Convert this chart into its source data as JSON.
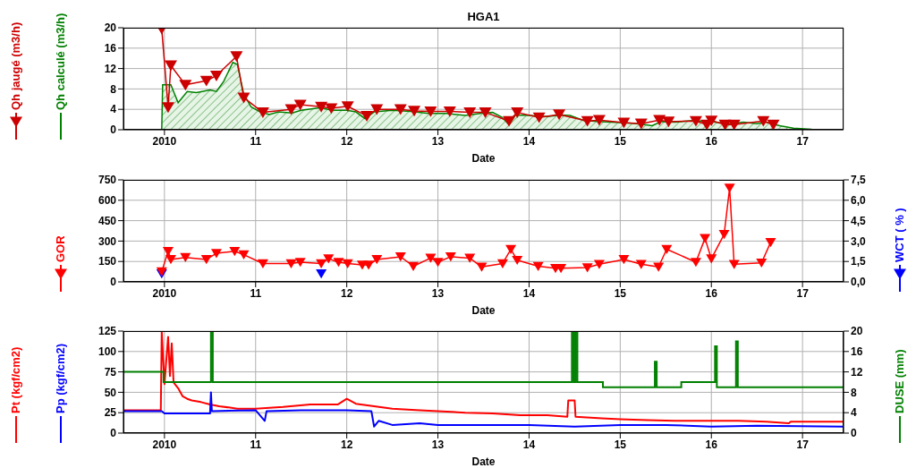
{
  "chart_data": [
    {
      "type": "line",
      "title": "HGA1",
      "xlabel": "Date",
      "xlim": [
        2009.55,
        2017.45
      ],
      "xticks": [
        {
          "value": 2010,
          "label": "2010"
        },
        {
          "value": 2011,
          "label": "11"
        },
        {
          "value": 2012,
          "label": "12"
        },
        {
          "value": 2013,
          "label": "13"
        },
        {
          "value": 2014,
          "label": "14"
        },
        {
          "value": 2015,
          "label": "15"
        },
        {
          "value": 2016,
          "label": "16"
        },
        {
          "value": 2017,
          "label": "17"
        }
      ],
      "ylim": [
        0,
        20
      ],
      "yticks": [
        0,
        4,
        8,
        12,
        16,
        20
      ],
      "grid": true,
      "legend": "left",
      "series": [
        {
          "name": "Qh jaugé (m3/h)",
          "type": "line",
          "marker": "triangle",
          "color": "#cc0000",
          "x": [
            2009.97,
            2010.04,
            2010.07,
            2010.23,
            2010.46,
            2010.57,
            2010.79,
            2010.87,
            2011.08,
            2011.39,
            2011.49,
            2011.72,
            2011.83,
            2012.01,
            2012.22,
            2012.33,
            2012.59,
            2012.74,
            2012.92,
            2013.13,
            2013.35,
            2013.52,
            2013.78,
            2013.87,
            2014.11,
            2014.33,
            2014.64,
            2014.77,
            2015.04,
            2015.23,
            2015.43,
            2015.53,
            2015.83,
            2015.95,
            2016.0,
            2016.15,
            2016.25,
            2016.57,
            2016.68
          ],
          "values": [
            19.8,
            4.4,
            12.6,
            8.8,
            9.6,
            10.6,
            14.4,
            6.3,
            3.4,
            4.0,
            4.9,
            4.5,
            4.2,
            4.6,
            2.7,
            4.0,
            4.0,
            3.7,
            3.6,
            3.6,
            3.4,
            3.4,
            1.7,
            3.4,
            2.4,
            3.0,
            1.7,
            1.9,
            1.4,
            1.2,
            1.9,
            1.6,
            1.7,
            1.0,
            1.8,
            1.0,
            1.0,
            1.7,
            1.0
          ]
        },
        {
          "name": "Qh calculé (m3/h)",
          "type": "area",
          "color": "#008000",
          "x": [
            2009.97,
            2009.98,
            2010.04,
            2010.07,
            2010.15,
            2010.25,
            2010.35,
            2010.5,
            2010.57,
            2010.65,
            2010.75,
            2010.8,
            2010.87,
            2010.95,
            2011.05,
            2011.15,
            2011.25,
            2011.4,
            2011.5,
            2011.7,
            2011.85,
            2012.0,
            2012.1,
            2012.2,
            2012.3,
            2012.5,
            2012.7,
            2012.9,
            2013.1,
            2013.3,
            2013.5,
            2013.6,
            2013.7,
            2013.78,
            2013.85,
            2014.0,
            2014.2,
            2014.35,
            2014.45,
            2014.6,
            2014.8,
            2015.0,
            2015.2,
            2015.35,
            2015.45,
            2015.6,
            2015.8,
            2016.0,
            2016.2,
            2016.35,
            2016.5,
            2016.6,
            2016.75,
            2016.9,
            2017.1
          ],
          "values": [
            0,
            8.8,
            8.8,
            8.8,
            5.3,
            7.5,
            7.3,
            7.8,
            7.5,
            9.5,
            13.2,
            12.8,
            7,
            4.5,
            3.5,
            3,
            3.5,
            3.3,
            3.8,
            4.3,
            3.8,
            3.8,
            3.5,
            2.2,
            3.5,
            3.8,
            3.6,
            3.2,
            3.2,
            2.8,
            3.3,
            3.4,
            2.5,
            1.0,
            2.9,
            2.8,
            2.6,
            2.9,
            2.8,
            1.8,
            1.6,
            1.4,
            1.2,
            0.8,
            1.6,
            1.5,
            1.8,
            1.6,
            1.2,
            1.5,
            1.2,
            1.5,
            0.8,
            0.3,
            0.1
          ]
        }
      ]
    },
    {
      "type": "line",
      "xlabel": "Date",
      "xlim": [
        2009.55,
        2017.45
      ],
      "xticks": [
        {
          "value": 2010,
          "label": "2010"
        },
        {
          "value": 2011,
          "label": "11"
        },
        {
          "value": 2012,
          "label": "12"
        },
        {
          "value": 2013,
          "label": "13"
        },
        {
          "value": 2014,
          "label": "14"
        },
        {
          "value": 2015,
          "label": "15"
        },
        {
          "value": 2016,
          "label": "16"
        },
        {
          "value": 2017,
          "label": "17"
        }
      ],
      "ylim": [
        0,
        750
      ],
      "yticks": [
        0,
        150,
        300,
        450,
        600,
        750
      ],
      "y2lim": [
        0,
        7.5
      ],
      "y2ticks": [
        {
          "value": 0,
          "label": "0,0"
        },
        {
          "value": 1.5,
          "label": "1,5"
        },
        {
          "value": 3,
          "label": "3,0"
        },
        {
          "value": 4.5,
          "label": "4,5"
        },
        {
          "value": 6,
          "label": "6,0"
        },
        {
          "value": 7.5,
          "label": "7,5"
        }
      ],
      "grid": true,
      "legend": "left",
      "series": [
        {
          "name": "GOR",
          "type": "line",
          "marker": "triangle",
          "color": "#ff0000",
          "x": [
            2009.97,
            2010.04,
            2010.07,
            2010.23,
            2010.46,
            2010.57,
            2010.77,
            2010.87,
            2011.08,
            2011.39,
            2011.49,
            2011.72,
            2011.8,
            2011.91,
            2012.01,
            2012.17,
            2012.24,
            2012.33,
            2012.59,
            2012.73,
            2012.92,
            2013.0,
            2013.14,
            2013.35,
            2013.48,
            2013.71,
            2013.8,
            2013.87,
            2014.1,
            2014.29,
            2014.35,
            2014.64,
            2014.77,
            2015.04,
            2015.23,
            2015.42,
            2015.51,
            2015.83,
            2015.93,
            2016.0,
            2016.14,
            2016.2,
            2016.25,
            2016.55,
            2016.65
          ],
          "values": [
            75,
            225,
            165,
            180,
            165,
            210,
            225,
            200,
            135,
            135,
            145,
            135,
            170,
            145,
            135,
            125,
            125,
            165,
            185,
            115,
            175,
            145,
            185,
            175,
            110,
            135,
            240,
            160,
            115,
            100,
            100,
            105,
            130,
            165,
            130,
            110,
            240,
            145,
            320,
            170,
            350,
            690,
            130,
            140,
            290
          ]
        },
        {
          "name": "WCT ( % )",
          "type": "scatter",
          "marker": "triangle",
          "axis": "y2",
          "color": "#0000ff",
          "x": [
            2009.97,
            2011.72
          ],
          "values": [
            0.6,
            0.6
          ]
        }
      ]
    },
    {
      "type": "line",
      "xlabel": "Date",
      "xlim": [
        2009.55,
        2017.45
      ],
      "xticks": [
        {
          "value": 2010,
          "label": "2010"
        },
        {
          "value": 2011,
          "label": "11"
        },
        {
          "value": 2012,
          "label": "12"
        },
        {
          "value": 2013,
          "label": "13"
        },
        {
          "value": 2014,
          "label": "14"
        },
        {
          "value": 2015,
          "label": "15"
        },
        {
          "value": 2016,
          "label": "16"
        },
        {
          "value": 2017,
          "label": "17"
        }
      ],
      "ylim": [
        0,
        125
      ],
      "yticks": [
        0,
        25,
        50,
        75,
        100,
        125
      ],
      "y2lim": [
        0,
        20
      ],
      "y2ticks": [
        0,
        4,
        8,
        12,
        16,
        20
      ],
      "grid": true,
      "legend": "left",
      "series": [
        {
          "name": "Pt (kgf/cm2)",
          "type": "line",
          "color": "#ff0000",
          "x": [
            2009.55,
            2009.96,
            2009.97,
            2010.0,
            2010.04,
            2010.06,
            2010.08,
            2010.1,
            2010.15,
            2010.2,
            2010.25,
            2010.3,
            2010.4,
            2010.5,
            2010.6,
            2010.8,
            2011.0,
            2011.3,
            2011.6,
            2011.9,
            2012.0,
            2012.1,
            2012.3,
            2012.5,
            2012.8,
            2013.0,
            2013.3,
            2013.6,
            2013.9,
            2014.2,
            2014.42,
            2014.43,
            2014.5,
            2014.51,
            2014.8,
            2015.0,
            2015.3,
            2015.6,
            2016.0,
            2016.3,
            2016.6,
            2016.85,
            2016.87,
            2017.45
          ],
          "values": [
            28,
            28,
            125,
            60,
            118,
            70,
            110,
            62,
            55,
            45,
            42,
            40,
            38,
            35,
            33,
            30,
            30,
            32,
            35,
            35,
            42,
            36,
            33,
            30,
            28,
            27,
            25,
            24,
            22,
            22,
            20,
            40,
            40,
            20,
            18,
            17,
            16,
            15,
            15,
            15,
            14,
            12,
            14,
            14
          ]
        },
        {
          "name": "Pp (kgf/cm2)",
          "type": "line",
          "color": "#0000ff",
          "x": [
            2009.55,
            2009.97,
            2010.0,
            2010.3,
            2010.5,
            2010.51,
            2010.52,
            2011.0,
            2011.1,
            2011.12,
            2011.5,
            2012.0,
            2012.27,
            2012.3,
            2012.35,
            2012.5,
            2012.8,
            2013.0,
            2013.5,
            2014.0,
            2014.5,
            2015.0,
            2015.5,
            2016.0,
            2016.5,
            2017.45
          ],
          "values": [
            27,
            27,
            24,
            24,
            24,
            50,
            27,
            28,
            15,
            27,
            28,
            28,
            27,
            8,
            15,
            10,
            12,
            10,
            10,
            10,
            8,
            10,
            10,
            8,
            9,
            8
          ]
        },
        {
          "name": "DUSE (mm)",
          "type": "step",
          "axis": "y2",
          "color": "#008000",
          "x": [
            2009.55,
            2009.99,
            2010.51,
            2010.53,
            2014.47,
            2014.49,
            2014.51,
            2014.53,
            2014.81,
            2015.38,
            2015.4,
            2015.67,
            2016.04,
            2016.06,
            2016.27,
            2016.29,
            2017.45
          ],
          "values": [
            12,
            10,
            20,
            10,
            20,
            10,
            20,
            10,
            9,
            14,
            9,
            10,
            17,
            9,
            18,
            9,
            9
          ]
        }
      ]
    }
  ]
}
